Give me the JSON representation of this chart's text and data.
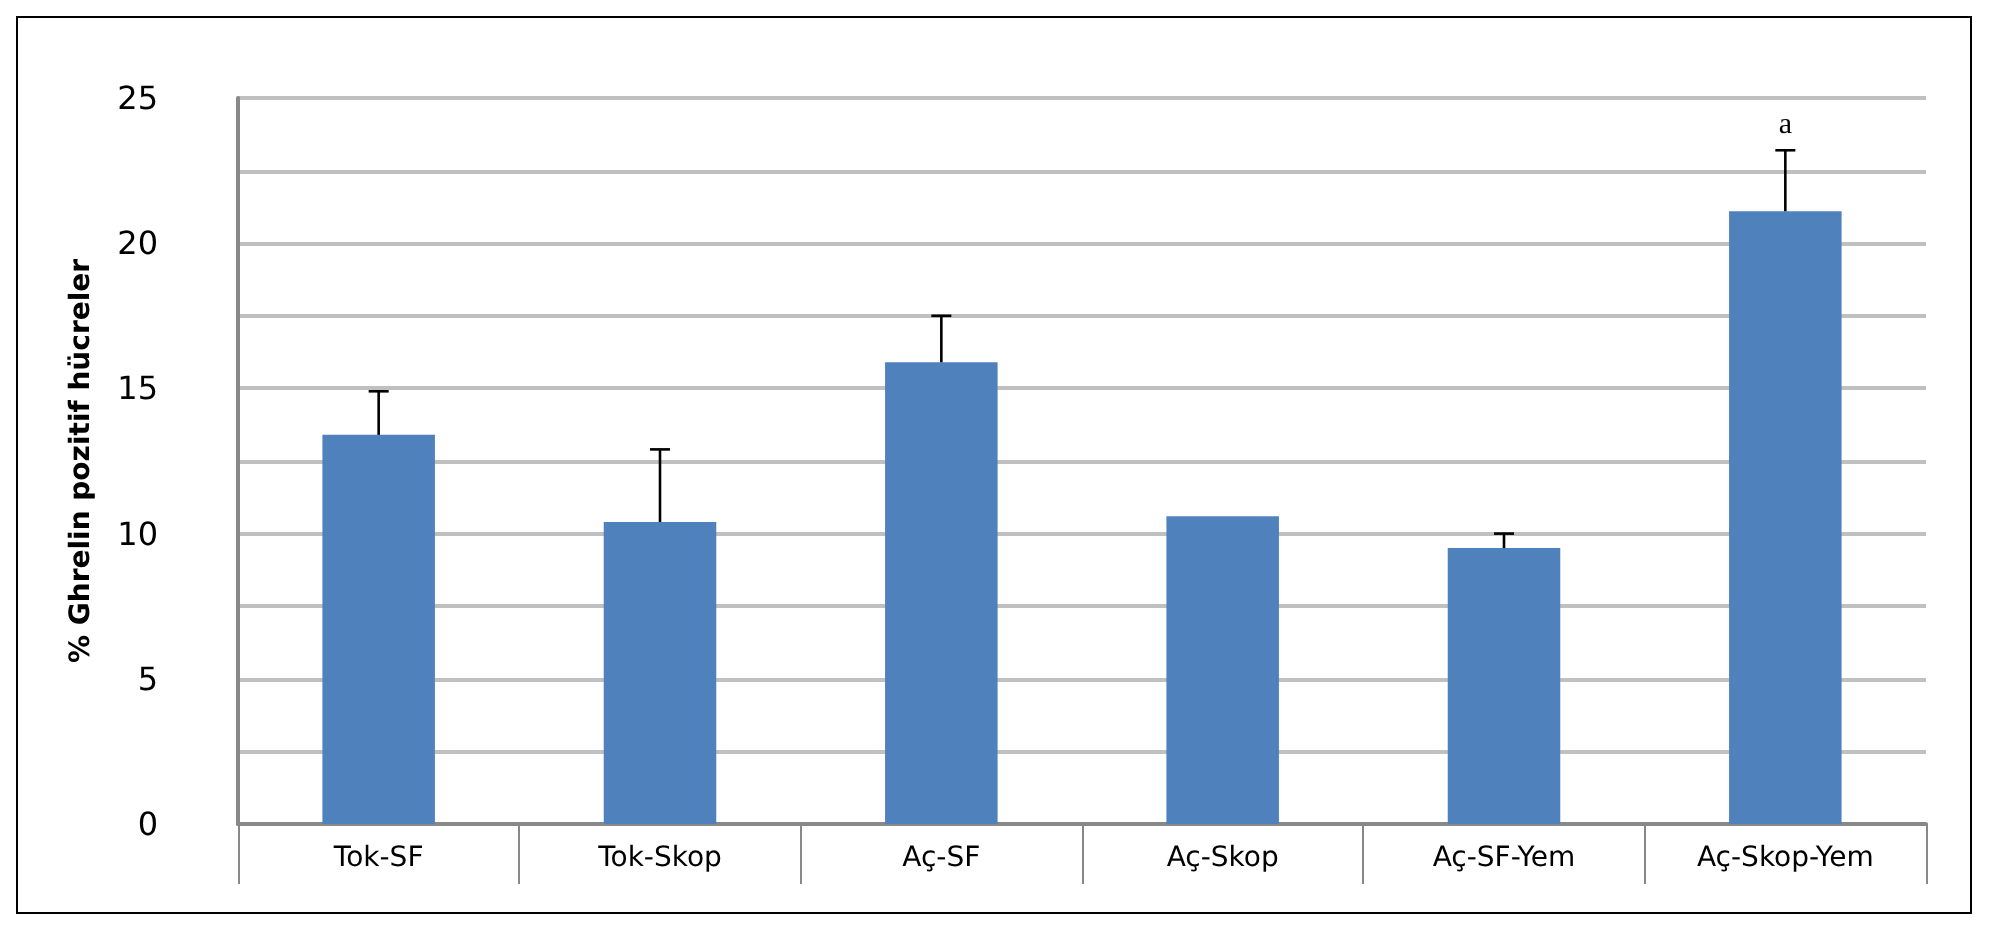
{
  "chart_data": {
    "type": "bar",
    "ylabel": "% Ghrelin pozitif hücreler",
    "categories": [
      "Tok-SF",
      "Tok-Skop",
      "Aç-SF",
      "Aç-Skop",
      "Aç-SF-Yem",
      "Aç-Skop-Yem"
    ],
    "values": [
      13.4,
      10.4,
      15.9,
      10.6,
      9.5,
      21.1
    ],
    "errors": [
      [
        13.4,
        14.9
      ],
      [
        10.4,
        12.9
      ],
      [
        15.9,
        17.5
      ],
      null,
      [
        9.5,
        10.0
      ],
      [
        21.1,
        23.2
      ]
    ],
    "color": "#4f81bd",
    "ylim": [
      0,
      25
    ],
    "yticks": [
      0,
      {
        "value": 2.5,
        "label": null
      },
      5,
      {
        "value": 7.5,
        "label": null
      },
      10,
      {
        "value": 12.5,
        "label": null
      },
      15,
      {
        "value": 17.5,
        "label": null
      },
      20,
      {
        "value": 22.5,
        "label": null
      },
      25
    ],
    "grid": "y",
    "annotations": [
      "a"
    ]
  }
}
